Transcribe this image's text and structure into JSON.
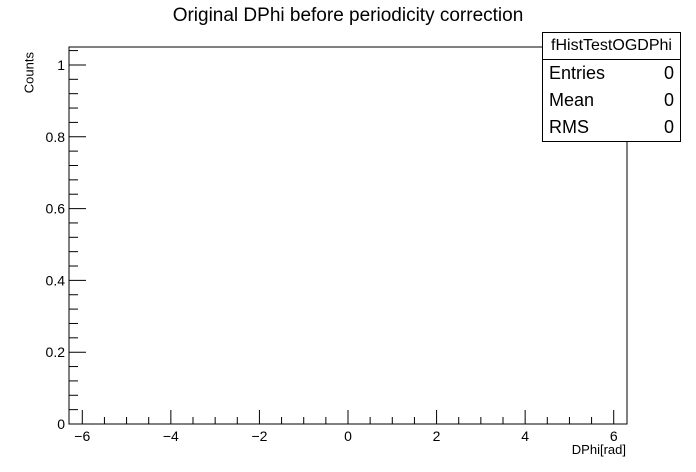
{
  "chart_data": {
    "type": "bar",
    "title": "Original DPhi before periodicity correction",
    "xlabel": "DPhi[rad]",
    "ylabel": "Counts",
    "xlim": [
      -6.3,
      6.3
    ],
    "ylim": [
      0,
      1.05
    ],
    "x_ticks": [
      -6,
      -4,
      -2,
      0,
      2,
      4,
      6
    ],
    "x_tick_labels": [
      "−6",
      "−4",
      "−2",
      "0",
      "2",
      "4",
      "6"
    ],
    "y_ticks": [
      0,
      0.2,
      0.4,
      0.6,
      0.8,
      1
    ],
    "y_tick_labels": [
      "0",
      "0.2",
      "0.4",
      "0.6",
      "0.8",
      "1"
    ],
    "series": [
      {
        "values": []
      }
    ],
    "grid": false
  },
  "stats_box": {
    "name": "fHistTestOGDPhi",
    "rows": [
      {
        "label": "Entries",
        "value": "0"
      },
      {
        "label": "Mean",
        "value": "0"
      },
      {
        "label": "RMS",
        "value": "0"
      }
    ]
  }
}
